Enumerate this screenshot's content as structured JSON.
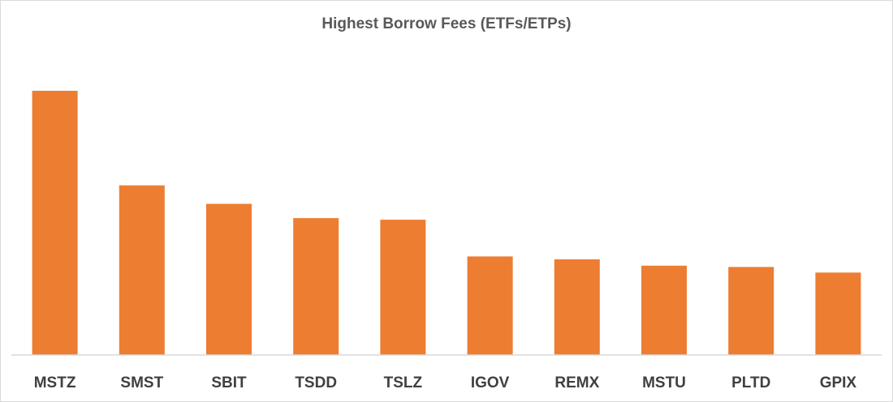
{
  "chart_data": {
    "type": "bar",
    "title": "Highest Borrow Fees (ETFs/ETPs)",
    "xlabel": "",
    "ylabel": "",
    "categories": [
      "MSTZ",
      "SMST",
      "SBIT",
      "TSDD",
      "TSLZ",
      "IGOV",
      "REMX",
      "MSTU",
      "PLTD",
      "GPIX"
    ],
    "values": [
      100,
      64.2,
      57.2,
      51.8,
      51.2,
      37.3,
      36.2,
      33.8,
      33.3,
      31.2
    ],
    "ylim": [
      0,
      100
    ],
    "grid": false,
    "legend": "none",
    "colors": {
      "bar": "#ED7D31",
      "axis": "#d9d9d9",
      "title": "#595959",
      "tick": "#404040"
    }
  }
}
